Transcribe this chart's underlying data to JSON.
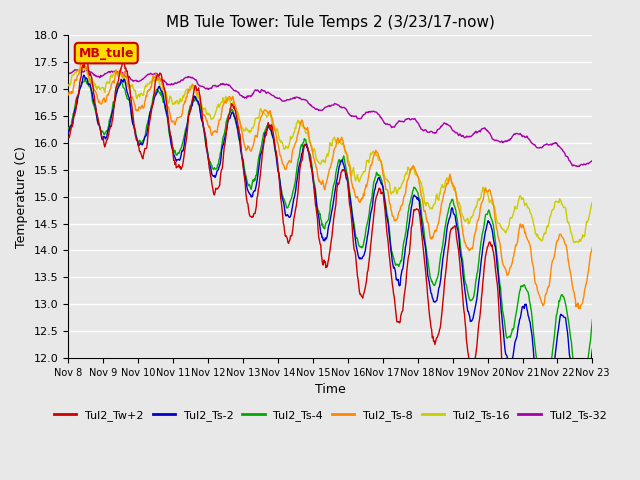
{
  "title": "MB Tule Tower: Tule Temps 2 (3/23/17-now)",
  "xlabel": "Time",
  "ylabel": "Temperature (C)",
  "ylim": [
    12.0,
    18.0
  ],
  "yticks": [
    12.0,
    12.5,
    13.0,
    13.5,
    14.0,
    14.5,
    15.0,
    15.5,
    16.0,
    16.5,
    17.0,
    17.5,
    18.0
  ],
  "xtick_labels": [
    "Nov 8",
    "Nov 9",
    "Nov 10",
    "Nov 11",
    "Nov 12",
    "Nov 13",
    "Nov 14",
    "Nov 15",
    "Nov 16",
    "Nov 17",
    "Nov 18",
    "Nov 19",
    "Nov 20",
    "Nov 21",
    "Nov 22",
    "Nov 23"
  ],
  "legend_label": "MB_tule",
  "legend_box_color": "#ffdd00",
  "legend_text_color": "#cc0000",
  "series_colors": {
    "Tul2_Tw+2": "#cc0000",
    "Tul2_Ts-2": "#0000cc",
    "Tul2_Ts-4": "#00aa00",
    "Tul2_Ts-8": "#ff8800",
    "Tul2_Ts-16": "#cccc00",
    "Tul2_Ts-32": "#aa00aa"
  },
  "bg_color": "#e8e8e8",
  "grid_color": "#ffffff"
}
